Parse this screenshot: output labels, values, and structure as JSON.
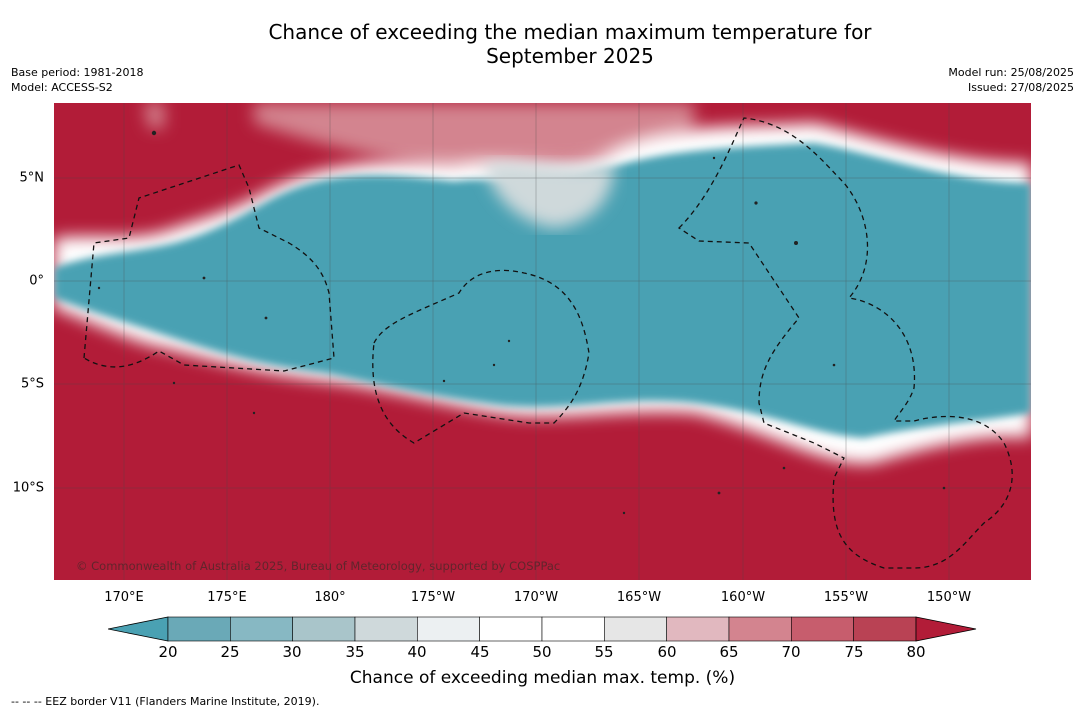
{
  "header": {
    "title": "Chance of exceeding the median maximum temperature for\nSeptember 2025",
    "base_period": "Base period: 1981-2018",
    "model": "Model: ACCESS-S2",
    "model_run": "Model run: 25/08/2025",
    "issued": "Issued: 27/08/2025"
  },
  "map": {
    "credit": "© Commonwealth of Australia 2025, Bureau of Meteorology, supported by COSPPac",
    "lon_ticks": [
      "170°E",
      "175°E",
      "180°",
      "175°W",
      "170°W",
      "165°W",
      "160°W",
      "155°W",
      "150°W"
    ],
    "lat_ticks": [
      "5°N",
      "0°",
      "5°S",
      "10°S"
    ],
    "colors": {
      "below": "#4aa1b3",
      "above": "#b21c38",
      "neutral": "#ffffff"
    }
  },
  "colorbar": {
    "labels": [
      "20",
      "25",
      "30",
      "35",
      "40",
      "45",
      "50",
      "55",
      "60",
      "65",
      "70",
      "75",
      "80"
    ],
    "colors": [
      "#4aa1b3",
      "#6aa9b7",
      "#87b8c3",
      "#a9c5ca",
      "#cfd9db",
      "#ecf0f2",
      "#ffffff",
      "#ffffff",
      "#e6e6e6",
      "#e1b8bf",
      "#d3848f",
      "#c75d6d",
      "#b94254",
      "#b21c38"
    ],
    "title": "Chance of exceeding median max. temp. (%)"
  },
  "legend_note": "--  --  -- EEZ border V11 (Flanders Marine Institute, 2019)."
}
